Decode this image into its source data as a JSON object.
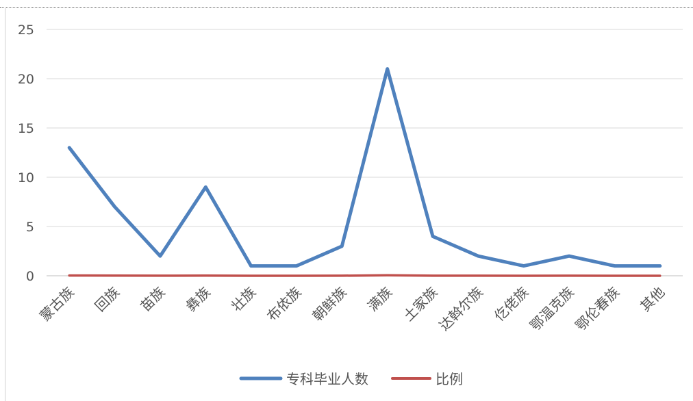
{
  "chart_data": {
    "type": "line",
    "categories": [
      "蒙古族",
      "回族",
      "苗族",
      "彝族",
      "壮族",
      "布依族",
      "朝鲜族",
      "满族",
      "土家族",
      "达斡尔族",
      "仡佬族",
      "鄂温克族",
      "鄂伦春族",
      "其他"
    ],
    "series": [
      {
        "name": "专科毕业人数",
        "color": "#4f81bd",
        "values": [
          13,
          7,
          2,
          9,
          1,
          1,
          3,
          21,
          4,
          2,
          1,
          2,
          1,
          1
        ]
      },
      {
        "name": "比例",
        "color": "#c0504d",
        "values": [
          0.03,
          0.02,
          0.01,
          0.02,
          0.0,
          0.0,
          0.01,
          0.05,
          0.01,
          0.01,
          0.0,
          0.01,
          0.0,
          0.0
        ]
      }
    ],
    "ylim": [
      0,
      25
    ],
    "yticks": [
      0,
      5,
      10,
      15,
      20,
      25
    ],
    "grid": true,
    "legend_position": "bottom"
  }
}
